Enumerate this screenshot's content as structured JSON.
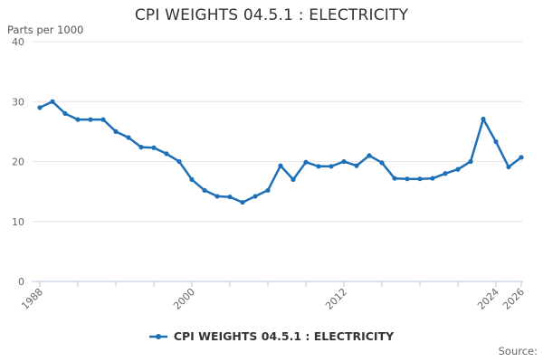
{
  "chart": {
    "title": "CPI WEIGHTS 04.5.1 : ELECTRICITY",
    "units_label": "Parts per 1000",
    "legend_label": "CPI WEIGHTS 04.5.1 : ELECTRICITY",
    "source_label": "Source:",
    "colors": {
      "line": "#1d70b8",
      "grid": "#e6e6e6",
      "axis": "#b9c7d7",
      "title_text": "#333333",
      "tick_text": "#666666"
    }
  },
  "chart_data": {
    "type": "line",
    "title": "CPI WEIGHTS 04.5.1 : ELECTRICITY",
    "ylabel": "Parts per 1000",
    "xlabel": "",
    "ylim": [
      0,
      40
    ],
    "y_ticks": [
      0,
      10,
      20,
      30,
      40
    ],
    "x_range": [
      1988,
      2026
    ],
    "x_ticks_all": [
      1988,
      1991,
      1994,
      1997,
      2000,
      2003,
      2006,
      2009,
      2012,
      2015,
      2018,
      2021,
      2024,
      2026
    ],
    "x_ticks_labeled": [
      1988,
      2000,
      2012,
      2024,
      2026
    ],
    "grid": "horizontal",
    "legend_position": "bottom",
    "series": [
      {
        "name": "CPI WEIGHTS 04.5.1 : ELECTRICITY",
        "x": [
          1988,
          1989,
          1990,
          1991,
          1992,
          1993,
          1994,
          1995,
          1996,
          1997,
          1998,
          1999,
          2000,
          2001,
          2002,
          2003,
          2004,
          2005,
          2006,
          2007,
          2008,
          2009,
          2010,
          2011,
          2012,
          2013,
          2014,
          2015,
          2016,
          2017,
          2018,
          2019,
          2020,
          2021,
          2022,
          2023,
          2024,
          2025,
          2026
        ],
        "values": [
          29,
          30,
          28,
          27,
          27,
          27,
          25,
          24,
          22.4,
          22.3,
          21.3,
          20,
          17,
          15.2,
          14.2,
          14.1,
          13.2,
          14.2,
          15.2,
          19.3,
          17,
          19.9,
          19.2,
          19.2,
          20,
          19.3,
          21,
          19.8,
          17.2,
          17.1,
          17.1,
          17.2,
          18,
          18.7,
          20,
          27.1,
          23.3,
          19.1,
          20.7
        ]
      }
    ]
  }
}
